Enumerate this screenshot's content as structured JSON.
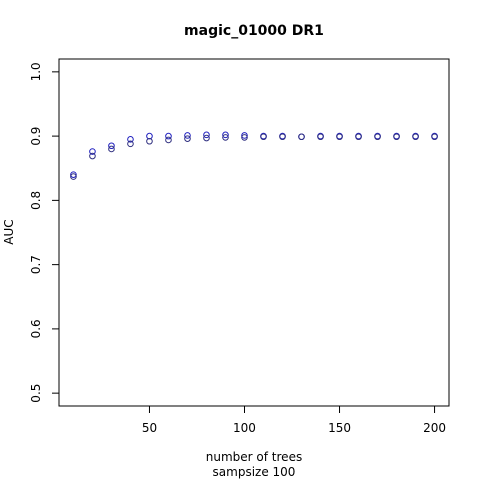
{
  "chart_data": {
    "type": "scatter",
    "title": "magic_01000 DR1",
    "xlabel": "number of trees",
    "xlabel2": "sampsize 100",
    "ylabel": "AUC",
    "xlim": [
      10,
      200
    ],
    "ylim": [
      0.5,
      1.0
    ],
    "x_ticks": [
      50,
      100,
      150,
      200
    ],
    "y_ticks": [
      0.5,
      0.6,
      0.7,
      0.8,
      0.9,
      1.0
    ],
    "grid": false,
    "series": [
      {
        "color": "#2020c0",
        "x": [
          10,
          20,
          30,
          40,
          50,
          60,
          70,
          80,
          90,
          100,
          110,
          120,
          130,
          140,
          150,
          160,
          170,
          180,
          190,
          200
        ],
        "y": [
          0.84,
          0.876,
          0.885,
          0.895,
          0.9,
          0.9,
          0.901,
          0.902,
          0.902,
          0.901,
          0.9,
          0.9,
          0.899,
          0.9,
          0.9,
          0.9,
          0.9,
          0.9,
          0.9,
          0.9
        ]
      },
      {
        "color": "#303080",
        "x": [
          10,
          20,
          30,
          40,
          50,
          60,
          70,
          80,
          90,
          100,
          110,
          120,
          130,
          140,
          150,
          160,
          170,
          180,
          190,
          200
        ],
        "y": [
          0.837,
          0.869,
          0.88,
          0.888,
          0.892,
          0.894,
          0.896,
          0.897,
          0.898,
          0.898,
          0.899,
          0.899,
          0.899,
          0.899,
          0.899,
          0.899,
          0.899,
          0.899,
          0.899,
          0.899
        ]
      }
    ]
  }
}
